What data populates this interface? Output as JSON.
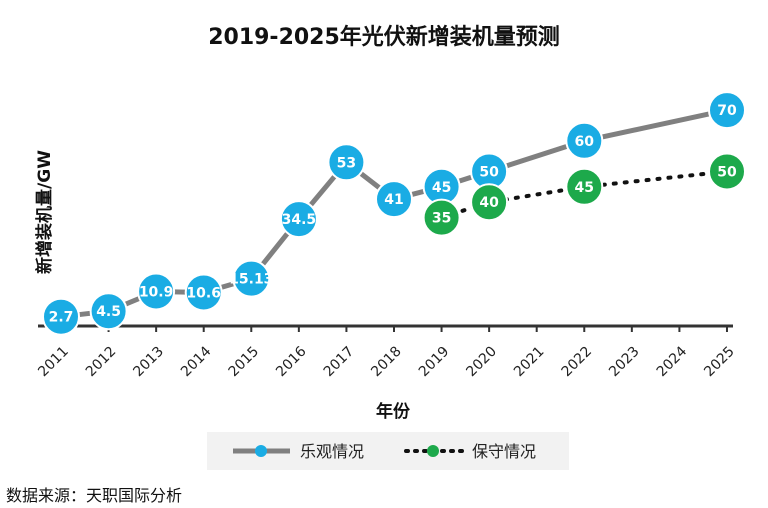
{
  "chart_data": {
    "type": "line",
    "title": "2019-2025年光伏新增装机量预测",
    "xlabel": "年份",
    "ylabel": "新增装机量/GW",
    "categories": [
      "2011",
      "2012",
      "2013",
      "2014",
      "2015",
      "2016",
      "2017",
      "2018",
      "2019",
      "2020",
      "2021",
      "2022",
      "2023",
      "2024",
      "2025"
    ],
    "ylim": [
      0,
      75
    ],
    "grid": false,
    "legend_position": "bottom",
    "series": [
      {
        "name": "乐观情况",
        "color": "#1AACE4",
        "line_color": "#808080",
        "line_style": "solid",
        "x": [
          "2011",
          "2012",
          "2013",
          "2014",
          "2015",
          "2016",
          "2017",
          "2018",
          "2019",
          "2020",
          "2022",
          "2025"
        ],
        "values": [
          2.7,
          4.5,
          10.9,
          10.6,
          15.13,
          34.5,
          53,
          41,
          45,
          50,
          60,
          70
        ],
        "labels": [
          "2.7",
          "4.5",
          "10.9",
          "10.6",
          "15.13",
          "34.5",
          "53",
          "41",
          "45",
          "50",
          "60",
          "70"
        ]
      },
      {
        "name": "保守情况",
        "color": "#1DA94B",
        "line_color": "#111111",
        "line_style": "dotted",
        "x": [
          "2019",
          "2020",
          "2022",
          "2025"
        ],
        "values": [
          35,
          40,
          45,
          50
        ],
        "labels": [
          "35",
          "40",
          "45",
          "50"
        ]
      }
    ]
  },
  "source": "数据来源：天职国际分析"
}
